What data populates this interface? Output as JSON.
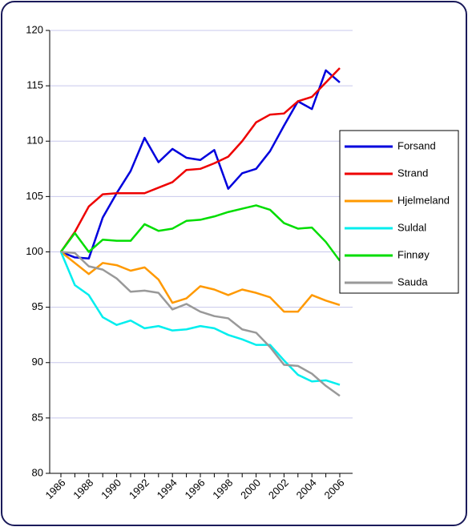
{
  "chart_data": {
    "type": "line",
    "categories": [
      "1986",
      null,
      "1988",
      null,
      "1990",
      null,
      "1992",
      null,
      "1994",
      null,
      "1996",
      null,
      "1998",
      null,
      "2000",
      null,
      "2002",
      null,
      "2004",
      null,
      "2006"
    ],
    "series": [
      {
        "name": "Forsand",
        "color": "#0000dd",
        "values": [
          100,
          99.5,
          99.4,
          103.1,
          105.3,
          107.3,
          110.3,
          108.1,
          109.3,
          108.5,
          108.3,
          109.2,
          105.7,
          107.1,
          107.5,
          109.1,
          111.4,
          113.6,
          112.9,
          116.4,
          115.3
        ]
      },
      {
        "name": "Strand",
        "color": "#ee0000",
        "values": [
          100,
          101.8,
          104.1,
          105.2,
          105.3,
          105.3,
          105.3,
          105.8,
          106.3,
          107.4,
          107.5,
          108.0,
          108.6,
          110.0,
          111.7,
          112.4,
          112.5,
          113.6,
          114.0,
          115.3,
          116.6
        ]
      },
      {
        "name": "Hjelmeland",
        "color": "#ff9900",
        "values": [
          100,
          99.0,
          98.0,
          99.0,
          98.8,
          98.3,
          98.6,
          97.5,
          95.4,
          95.8,
          96.9,
          96.6,
          96.1,
          96.6,
          96.3,
          95.9,
          94.6,
          94.6,
          96.1,
          95.6,
          95.2
        ]
      },
      {
        "name": "Suldal",
        "color": "#00eeee",
        "values": [
          100,
          97.0,
          96.1,
          94.1,
          93.4,
          93.8,
          93.1,
          93.3,
          92.9,
          93.0,
          93.3,
          93.1,
          92.5,
          92.1,
          91.6,
          91.6,
          90.2,
          88.9,
          88.3,
          88.4,
          88.0
        ]
      },
      {
        "name": "Finnøy",
        "color": "#00dd00",
        "values": [
          100,
          101.7,
          100.0,
          101.1,
          101.0,
          101.0,
          102.5,
          101.9,
          102.1,
          102.8,
          102.9,
          103.2,
          103.6,
          103.9,
          104.2,
          103.8,
          102.6,
          102.1,
          102.2,
          100.9,
          99.2
        ]
      },
      {
        "name": "Sauda",
        "color": "#999999",
        "values": [
          100,
          99.9,
          98.7,
          98.4,
          97.6,
          96.4,
          96.5,
          96.3,
          94.8,
          95.3,
          94.6,
          94.2,
          94.0,
          93.0,
          92.7,
          91.4,
          89.8,
          89.7,
          89.0,
          87.9,
          87.0
        ]
      }
    ],
    "ylim": [
      80,
      120
    ],
    "yticks": [
      80,
      85,
      90,
      95,
      100,
      105,
      110,
      115,
      120
    ],
    "grid": true,
    "legend": "right"
  }
}
